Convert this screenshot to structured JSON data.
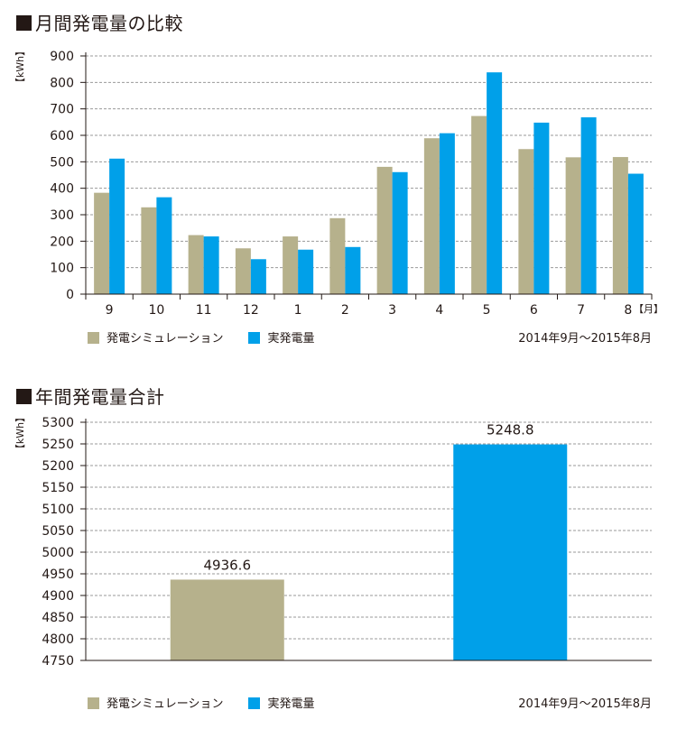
{
  "colors": {
    "simulation": "#b6b18c",
    "actual": "#00a0e9",
    "axis": "#231815",
    "grid": "#9a9a9a"
  },
  "monthly": {
    "title": "月間発電量の比較",
    "chart_data": {
      "type": "bar",
      "title": "月間発電量の比較",
      "ylabel": "【kWh】",
      "xlabel_unit": "【月】",
      "ylim": [
        0,
        900
      ],
      "yticks": [
        0,
        100,
        200,
        300,
        400,
        500,
        600,
        700,
        800,
        900
      ],
      "grid": true,
      "legend_placement": "bottom-left",
      "categories": [
        "9",
        "10",
        "11",
        "12",
        "1",
        "2",
        "3",
        "4",
        "5",
        "6",
        "7",
        "8"
      ],
      "series": [
        {
          "name": "発電シミュレーション",
          "values": [
            383,
            328,
            223,
            173,
            218,
            287,
            481,
            589,
            673,
            548,
            517,
            518
          ]
        },
        {
          "name": "実発電量",
          "values": [
            512,
            366,
            218,
            132,
            168,
            178,
            461,
            608,
            838,
            648,
            668,
            455
          ]
        }
      ]
    },
    "legend": [
      "発電シミュレーション",
      "実発電量"
    ],
    "period": "2014年9月～2015年8月"
  },
  "annual": {
    "title": "年間発電量合計",
    "chart_data": {
      "type": "bar",
      "title": "年間発電量合計",
      "ylabel": "【kWh】",
      "ylim": [
        4750,
        5300
      ],
      "yticks": [
        4750,
        4800,
        4850,
        4900,
        4950,
        5000,
        5050,
        5100,
        5150,
        5200,
        5250,
        5300
      ],
      "grid": true,
      "legend_placement": "bottom-left",
      "categories": [
        "発電シミュレーション",
        "実発電量"
      ],
      "values": [
        4936.6,
        5248.8
      ],
      "data_labels": [
        "4936.6",
        "5248.8"
      ]
    },
    "legend": [
      "発電シミュレーション",
      "実発電量"
    ],
    "period": "2014年9月～2015年8月"
  }
}
